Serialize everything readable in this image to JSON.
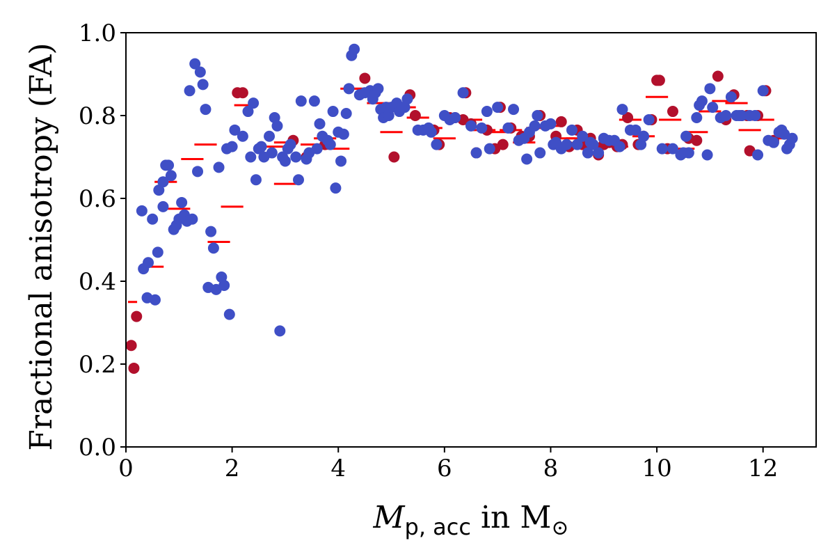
{
  "chart_data": {
    "type": "scatter",
    "title": "",
    "xlabel": {
      "main": "M",
      "subscript": "p, acc",
      "connector": " in M",
      "symbol": "⊙"
    },
    "ylabel": "Fractional anisotropy (FA)",
    "xlim": [
      0,
      13
    ],
    "ylim": [
      0,
      1.0
    ],
    "x_ticks": [
      0,
      2,
      4,
      6,
      8,
      10,
      12
    ],
    "x_tick_labels": [
      "0",
      "2",
      "4",
      "6",
      "8",
      "10",
      "12"
    ],
    "y_ticks": [
      0.0,
      0.2,
      0.4,
      0.6,
      0.8,
      1.0
    ],
    "y_tick_labels": [
      "0.0",
      "0.2",
      "0.4",
      "0.6",
      "0.8",
      "1.0"
    ],
    "colors": {
      "blue": "#3f4fc6",
      "red": "#b2102c",
      "mean": "#ff0000"
    },
    "series": [
      {
        "name": "blue points",
        "color": "#3f4fc6",
        "points": [
          [
            0.3,
            0.57
          ],
          [
            0.33,
            0.43
          ],
          [
            0.4,
            0.36
          ],
          [
            0.42,
            0.445
          ],
          [
            0.5,
            0.55
          ],
          [
            0.55,
            0.355
          ],
          [
            0.6,
            0.47
          ],
          [
            0.62,
            0.62
          ],
          [
            0.7,
            0.64
          ],
          [
            0.7,
            0.58
          ],
          [
            0.75,
            0.68
          ],
          [
            0.8,
            0.68
          ],
          [
            0.85,
            0.655
          ],
          [
            0.9,
            0.525
          ],
          [
            0.95,
            0.535
          ],
          [
            1.0,
            0.55
          ],
          [
            1.05,
            0.59
          ],
          [
            1.1,
            0.56
          ],
          [
            1.15,
            0.545
          ],
          [
            1.2,
            0.86
          ],
          [
            1.25,
            0.55
          ],
          [
            1.3,
            0.925
          ],
          [
            1.35,
            0.665
          ],
          [
            1.4,
            0.905
          ],
          [
            1.45,
            0.875
          ],
          [
            1.5,
            0.815
          ],
          [
            1.55,
            0.385
          ],
          [
            1.6,
            0.52
          ],
          [
            1.65,
            0.48
          ],
          [
            1.7,
            0.38
          ],
          [
            1.75,
            0.675
          ],
          [
            1.8,
            0.41
          ],
          [
            1.85,
            0.39
          ],
          [
            1.9,
            0.72
          ],
          [
            1.95,
            0.32
          ],
          [
            2.0,
            0.725
          ],
          [
            2.05,
            0.765
          ],
          [
            2.2,
            0.75
          ],
          [
            2.3,
            0.81
          ],
          [
            2.35,
            0.7
          ],
          [
            2.4,
            0.83
          ],
          [
            2.45,
            0.645
          ],
          [
            2.5,
            0.72
          ],
          [
            2.55,
            0.725
          ],
          [
            2.6,
            0.7
          ],
          [
            2.7,
            0.75
          ],
          [
            2.75,
            0.71
          ],
          [
            2.8,
            0.795
          ],
          [
            2.85,
            0.775
          ],
          [
            2.9,
            0.28
          ],
          [
            2.95,
            0.7
          ],
          [
            3.0,
            0.69
          ],
          [
            3.05,
            0.72
          ],
          [
            3.1,
            0.73
          ],
          [
            3.2,
            0.7
          ],
          [
            3.25,
            0.645
          ],
          [
            3.3,
            0.835
          ],
          [
            3.4,
            0.695
          ],
          [
            3.45,
            0.71
          ],
          [
            3.55,
            0.835
          ],
          [
            3.6,
            0.72
          ],
          [
            3.65,
            0.78
          ],
          [
            3.7,
            0.75
          ],
          [
            3.8,
            0.74
          ],
          [
            3.85,
            0.73
          ],
          [
            3.9,
            0.81
          ],
          [
            3.95,
            0.625
          ],
          [
            4.0,
            0.76
          ],
          [
            4.05,
            0.69
          ],
          [
            4.1,
            0.755
          ],
          [
            4.15,
            0.805
          ],
          [
            4.2,
            0.865
          ],
          [
            4.25,
            0.945
          ],
          [
            4.3,
            0.96
          ],
          [
            4.4,
            0.85
          ],
          [
            4.5,
            0.855
          ],
          [
            4.6,
            0.86
          ],
          [
            4.65,
            0.84
          ],
          [
            4.7,
            0.855
          ],
          [
            4.75,
            0.865
          ],
          [
            4.8,
            0.815
          ],
          [
            4.85,
            0.795
          ],
          [
            4.9,
            0.82
          ],
          [
            4.95,
            0.8
          ],
          [
            5.0,
            0.82
          ],
          [
            5.1,
            0.83
          ],
          [
            5.15,
            0.81
          ],
          [
            5.2,
            0.82
          ],
          [
            5.25,
            0.82
          ],
          [
            5.3,
            0.84
          ],
          [
            5.5,
            0.765
          ],
          [
            5.6,
            0.765
          ],
          [
            5.7,
            0.77
          ],
          [
            5.75,
            0.76
          ],
          [
            5.85,
            0.73
          ],
          [
            6.0,
            0.8
          ],
          [
            6.1,
            0.79
          ],
          [
            6.2,
            0.795
          ],
          [
            6.35,
            0.855
          ],
          [
            6.5,
            0.775
          ],
          [
            6.6,
            0.71
          ],
          [
            6.7,
            0.77
          ],
          [
            6.8,
            0.81
          ],
          [
            6.85,
            0.72
          ],
          [
            7.0,
            0.82
          ],
          [
            7.2,
            0.77
          ],
          [
            7.3,
            0.815
          ],
          [
            7.4,
            0.74
          ],
          [
            7.5,
            0.745
          ],
          [
            7.55,
            0.695
          ],
          [
            7.6,
            0.76
          ],
          [
            7.7,
            0.775
          ],
          [
            7.75,
            0.8
          ],
          [
            7.8,
            0.71
          ],
          [
            7.9,
            0.775
          ],
          [
            8.0,
            0.78
          ],
          [
            8.05,
            0.73
          ],
          [
            8.1,
            0.735
          ],
          [
            8.2,
            0.72
          ],
          [
            8.3,
            0.73
          ],
          [
            8.4,
            0.765
          ],
          [
            8.5,
            0.73
          ],
          [
            8.6,
            0.75
          ],
          [
            8.7,
            0.71
          ],
          [
            8.75,
            0.735
          ],
          [
            8.8,
            0.73
          ],
          [
            8.9,
            0.71
          ],
          [
            9.0,
            0.745
          ],
          [
            9.1,
            0.74
          ],
          [
            9.2,
            0.74
          ],
          [
            9.3,
            0.725
          ],
          [
            9.35,
            0.815
          ],
          [
            9.5,
            0.765
          ],
          [
            9.6,
            0.765
          ],
          [
            9.7,
            0.73
          ],
          [
            9.75,
            0.75
          ],
          [
            9.85,
            0.79
          ],
          [
            10.1,
            0.72
          ],
          [
            10.3,
            0.72
          ],
          [
            10.45,
            0.705
          ],
          [
            10.5,
            0.71
          ],
          [
            10.55,
            0.75
          ],
          [
            10.6,
            0.71
          ],
          [
            10.75,
            0.795
          ],
          [
            10.8,
            0.825
          ],
          [
            10.85,
            0.835
          ],
          [
            10.95,
            0.705
          ],
          [
            11.0,
            0.865
          ],
          [
            11.05,
            0.82
          ],
          [
            11.2,
            0.795
          ],
          [
            11.3,
            0.8
          ],
          [
            11.4,
            0.845
          ],
          [
            11.5,
            0.8
          ],
          [
            11.55,
            0.8
          ],
          [
            11.6,
            0.8
          ],
          [
            11.75,
            0.8
          ],
          [
            11.85,
            0.8
          ],
          [
            11.9,
            0.705
          ],
          [
            12.0,
            0.86
          ],
          [
            12.1,
            0.74
          ],
          [
            12.2,
            0.735
          ],
          [
            12.3,
            0.76
          ],
          [
            12.35,
            0.765
          ],
          [
            12.4,
            0.755
          ],
          [
            12.45,
            0.72
          ],
          [
            12.5,
            0.73
          ],
          [
            12.55,
            0.745
          ]
        ]
      },
      {
        "name": "red points",
        "color": "#b2102c",
        "points": [
          [
            0.1,
            0.245
          ],
          [
            0.15,
            0.19
          ],
          [
            0.2,
            0.315
          ],
          [
            2.1,
            0.855
          ],
          [
            2.2,
            0.855
          ],
          [
            3.15,
            0.74
          ],
          [
            3.4,
            0.7
          ],
          [
            3.75,
            0.73
          ],
          [
            4.5,
            0.89
          ],
          [
            5.05,
            0.7
          ],
          [
            5.35,
            0.85
          ],
          [
            5.45,
            0.8
          ],
          [
            5.8,
            0.765
          ],
          [
            5.9,
            0.73
          ],
          [
            6.1,
            0.795
          ],
          [
            6.2,
            0.795
          ],
          [
            6.35,
            0.79
          ],
          [
            6.4,
            0.855
          ],
          [
            6.5,
            0.78
          ],
          [
            6.6,
            0.71
          ],
          [
            6.8,
            0.765
          ],
          [
            6.95,
            0.72
          ],
          [
            7.05,
            0.82
          ],
          [
            7.1,
            0.73
          ],
          [
            7.25,
            0.77
          ],
          [
            7.45,
            0.75
          ],
          [
            7.6,
            0.75
          ],
          [
            7.8,
            0.8
          ],
          [
            8.1,
            0.75
          ],
          [
            8.2,
            0.785
          ],
          [
            8.35,
            0.725
          ],
          [
            8.5,
            0.765
          ],
          [
            8.6,
            0.73
          ],
          [
            8.75,
            0.745
          ],
          [
            8.9,
            0.705
          ],
          [
            9.0,
            0.73
          ],
          [
            9.1,
            0.735
          ],
          [
            9.25,
            0.725
          ],
          [
            9.35,
            0.73
          ],
          [
            9.45,
            0.795
          ],
          [
            9.65,
            0.73
          ],
          [
            9.75,
            0.75
          ],
          [
            9.9,
            0.79
          ],
          [
            10.0,
            0.885
          ],
          [
            10.05,
            0.885
          ],
          [
            10.2,
            0.72
          ],
          [
            10.3,
            0.81
          ],
          [
            10.6,
            0.745
          ],
          [
            10.75,
            0.74
          ],
          [
            11.15,
            0.895
          ],
          [
            11.3,
            0.79
          ],
          [
            11.45,
            0.85
          ],
          [
            11.6,
            0.8
          ],
          [
            11.7,
            0.8
          ],
          [
            11.75,
            0.715
          ],
          [
            11.9,
            0.8
          ],
          [
            12.05,
            0.86
          ],
          [
            12.2,
            0.74
          ]
        ]
      }
    ],
    "means": {
      "name": "binned mean",
      "color": "#ff0000",
      "segments": [
        [
          0.0,
          0.25,
          0.35
        ],
        [
          0.25,
          0.75,
          0.435
        ],
        [
          0.5,
          1.0,
          0.64
        ],
        [
          0.75,
          1.25,
          0.575
        ],
        [
          1.0,
          1.5,
          0.695
        ],
        [
          1.25,
          1.75,
          0.73
        ],
        [
          1.5,
          2.0,
          0.495
        ],
        [
          1.75,
          2.25,
          0.58
        ],
        [
          2.0,
          2.5,
          0.825
        ],
        [
          2.5,
          3.0,
          0.725
        ],
        [
          2.75,
          3.25,
          0.735
        ],
        [
          2.75,
          3.25,
          0.635
        ],
        [
          3.25,
          3.75,
          0.73
        ],
        [
          3.75,
          4.25,
          0.72
        ],
        [
          3.5,
          4.0,
          0.745
        ],
        [
          4.0,
          4.5,
          0.865
        ],
        [
          4.25,
          4.75,
          0.865
        ],
        [
          4.5,
          5.0,
          0.83
        ],
        [
          4.75,
          5.25,
          0.76
        ],
        [
          5.0,
          5.5,
          0.82
        ],
        [
          5.25,
          5.75,
          0.795
        ],
        [
          5.5,
          6.0,
          0.77
        ],
        [
          5.75,
          6.25,
          0.745
        ],
        [
          6.0,
          6.5,
          0.79
        ],
        [
          6.25,
          6.75,
          0.79
        ],
        [
          6.5,
          7.0,
          0.765
        ],
        [
          6.75,
          7.25,
          0.76
        ],
        [
          7.0,
          7.5,
          0.765
        ],
        [
          7.25,
          7.75,
          0.735
        ],
        [
          7.5,
          8.0,
          0.77
        ],
        [
          7.75,
          8.25,
          0.775
        ],
        [
          8.0,
          8.5,
          0.745
        ],
        [
          8.25,
          8.75,
          0.745
        ],
        [
          8.5,
          9.0,
          0.725
        ],
        [
          8.75,
          9.25,
          0.73
        ],
        [
          9.0,
          9.5,
          0.725
        ],
        [
          9.25,
          9.75,
          0.79
        ],
        [
          9.5,
          10.0,
          0.75
        ],
        [
          9.75,
          10.25,
          0.845
        ],
        [
          10.0,
          10.5,
          0.79
        ],
        [
          10.25,
          10.75,
          0.72
        ],
        [
          10.5,
          11.0,
          0.76
        ],
        [
          10.75,
          11.25,
          0.81
        ],
        [
          11.0,
          11.5,
          0.835
        ],
        [
          11.25,
          11.75,
          0.83
        ],
        [
          11.5,
          12.0,
          0.765
        ],
        [
          11.75,
          12.25,
          0.79
        ],
        [
          12.0,
          12.5,
          0.745
        ]
      ]
    }
  }
}
